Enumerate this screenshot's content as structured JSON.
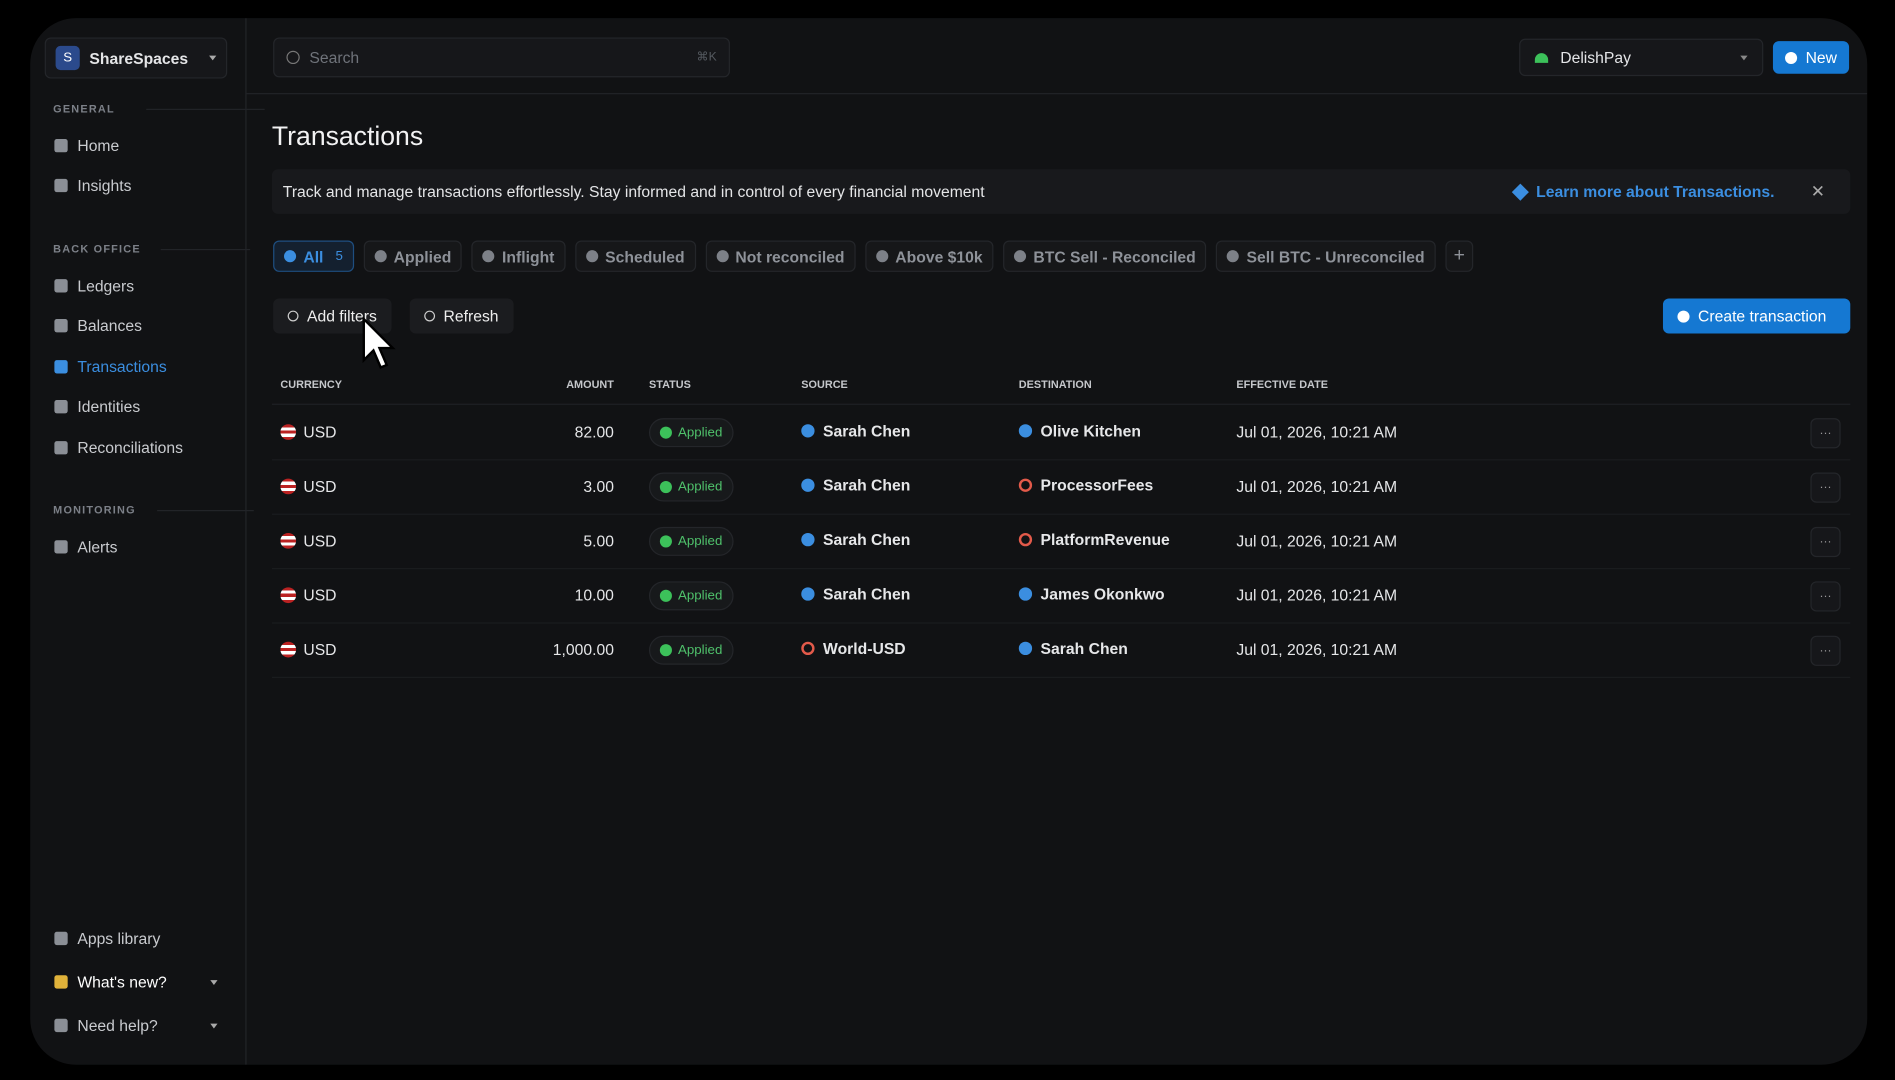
{
  "workspace": {
    "initial": "S",
    "name": "ShareSpaces"
  },
  "sidebar": {
    "sections": [
      {
        "label": "GENERAL",
        "items": [
          "Home",
          "Insights"
        ]
      },
      {
        "label": "BACK OFFICE",
        "items": [
          "Ledgers",
          "Balances",
          "Transactions",
          "Identities",
          "Reconciliations"
        ]
      },
      {
        "label": "MONITORING",
        "items": [
          "Alerts"
        ]
      }
    ],
    "footer": [
      "Apps library",
      "What's new?",
      "Need help?"
    ]
  },
  "topbar": {
    "search": "Search",
    "shortcut": "⌘K",
    "organization": "DelishPay",
    "new_button": "New"
  },
  "header": {
    "title": "Transactions",
    "banner": "Track and manage transactions effortlessly. Stay informed and in control of every financial movement",
    "banner_link": "Learn more about Transactions."
  },
  "tabs": [
    {
      "label": "All",
      "count": "5"
    },
    {
      "label": "Applied"
    },
    {
      "label": "Inflight"
    },
    {
      "label": "Scheduled"
    },
    {
      "label": "Not reconciled"
    },
    {
      "label": "Above $10k"
    },
    {
      "label": "BTC Sell - Reconciled"
    },
    {
      "label": "Sell BTC - Unreconciled"
    }
  ],
  "toolbar": {
    "filters": "Add filters",
    "refresh": "Refresh",
    "create": "Create transaction"
  },
  "table": {
    "columns": [
      "CURRENCY",
      "AMOUNT",
      "STATUS",
      "SOURCE",
      "DESTINATION",
      "EFFECTIVE DATE"
    ],
    "rows": [
      [
        "USD",
        "82.00",
        "Applied",
        "Sarah Chen",
        "Olive Kitchen",
        "Jul 01, 2026, 10:21 AM"
      ],
      [
        "USD",
        "3.00",
        "Applied",
        "Sarah Chen",
        "ProcessorFees",
        "Jul 01, 2026, 10:21 AM"
      ],
      [
        "USD",
        "5.00",
        "Applied",
        "Sarah Chen",
        "PlatformRevenue",
        "Jul 01, 2026, 10:21 AM"
      ],
      [
        "USD",
        "10.00",
        "Applied",
        "Sarah Chen",
        "James Okonkwo",
        "Jul 01, 2026, 10:21 AM"
      ],
      [
        "USD",
        "1,000.00",
        "Applied",
        "World-USD",
        "Sarah Chen",
        "Jul 01, 2026, 10:21 AM"
      ]
    ]
  }
}
